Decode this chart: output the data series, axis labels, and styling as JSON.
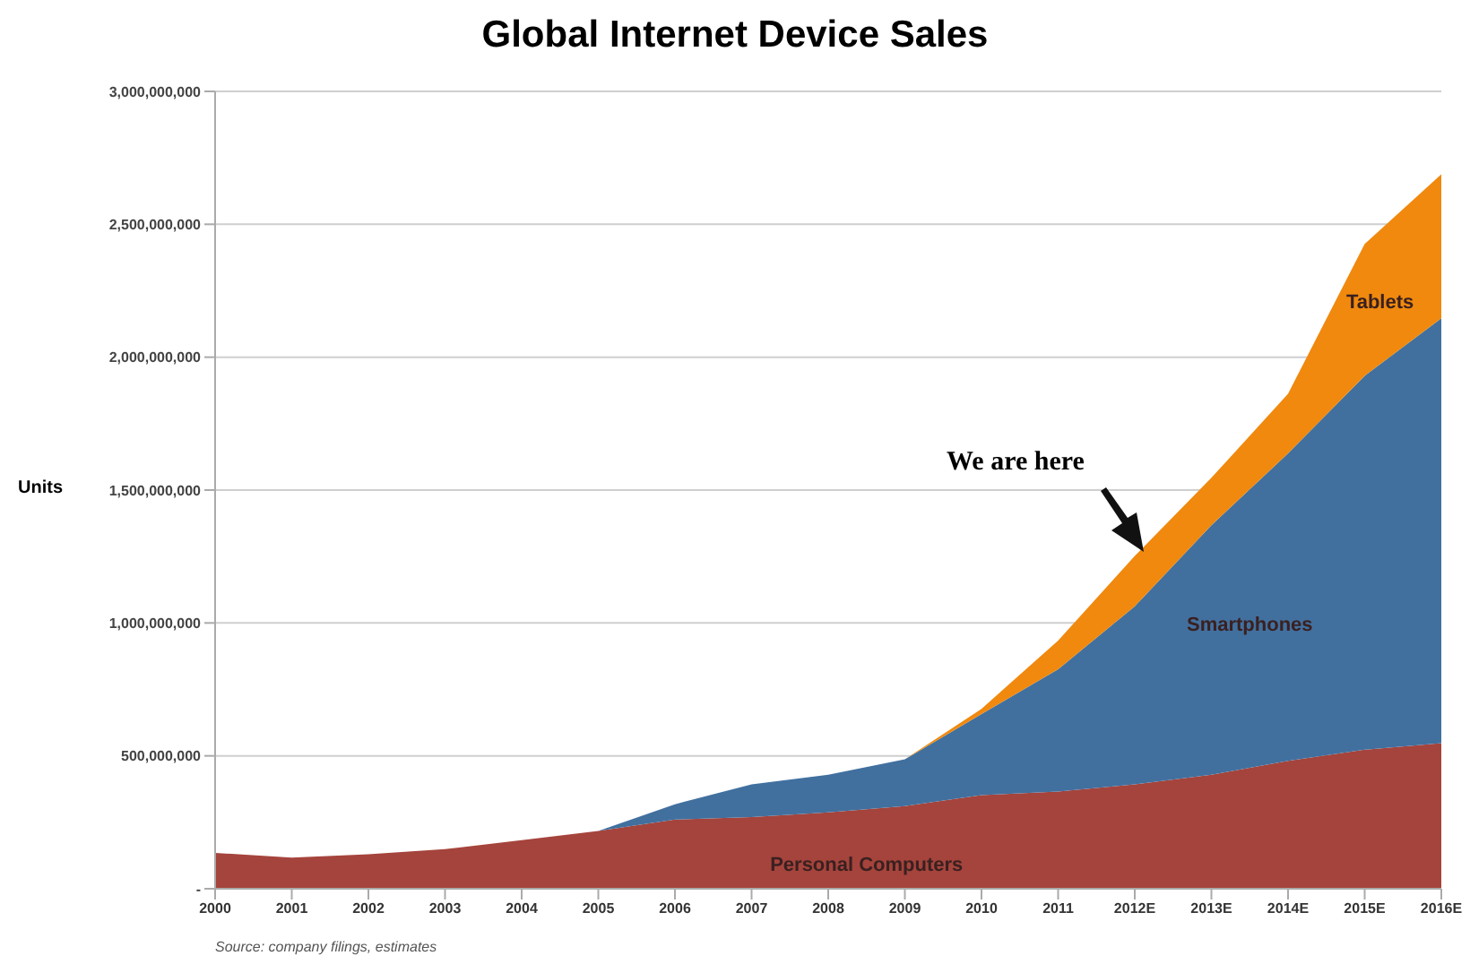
{
  "chart_data": {
    "type": "area",
    "stacked": true,
    "title": "Global Internet Device Sales",
    "ylabel": "Units",
    "categories": [
      "2000",
      "2001",
      "2002",
      "2003",
      "2004",
      "2005",
      "2006",
      "2007",
      "2008",
      "2009",
      "2010",
      "2011",
      "2012E",
      "2013E",
      "2014E",
      "2015E",
      "2016E"
    ],
    "series": [
      {
        "name": "Personal Computers",
        "color": "#a5443c",
        "values": [
          135000000,
          117000000,
          130000000,
          149000000,
          183000000,
          217000000,
          260000000,
          270000000,
          287000000,
          311000000,
          352000000,
          366000000,
          393000000,
          429000000,
          481000000,
          523000000,
          548000000
        ]
      },
      {
        "name": "Smartphones",
        "color": "#41709f",
        "values": [
          0,
          0,
          0,
          0,
          0,
          0,
          58000000,
          123000000,
          142000000,
          176000000,
          305000000,
          460000000,
          670000000,
          939000000,
          1157000000,
          1407000000,
          1598000000
        ]
      },
      {
        "name": "Tablets",
        "color": "#f0890e",
        "values": [
          0,
          0,
          0,
          0,
          0,
          0,
          0,
          0,
          0,
          0,
          20000000,
          108000000,
          189000000,
          178000000,
          224000000,
          496000000,
          542000000
        ]
      }
    ],
    "ylim": [
      0,
      3000000000
    ],
    "yticks": [
      {
        "value": 0,
        "label": "-"
      },
      {
        "value": 500000000,
        "label": "500,000,000"
      },
      {
        "value": 1000000000,
        "label": "1,000,000,000"
      },
      {
        "value": 1500000000,
        "label": "1,500,000,000"
      },
      {
        "value": 2000000000,
        "label": "2,000,000,000"
      },
      {
        "value": 2500000000,
        "label": "2,500,000,000"
      },
      {
        "value": 3000000000,
        "label": "3,000,000,000"
      }
    ],
    "grid": "y",
    "annotations": [
      "We are here",
      "Source: company filings, estimates"
    ]
  }
}
